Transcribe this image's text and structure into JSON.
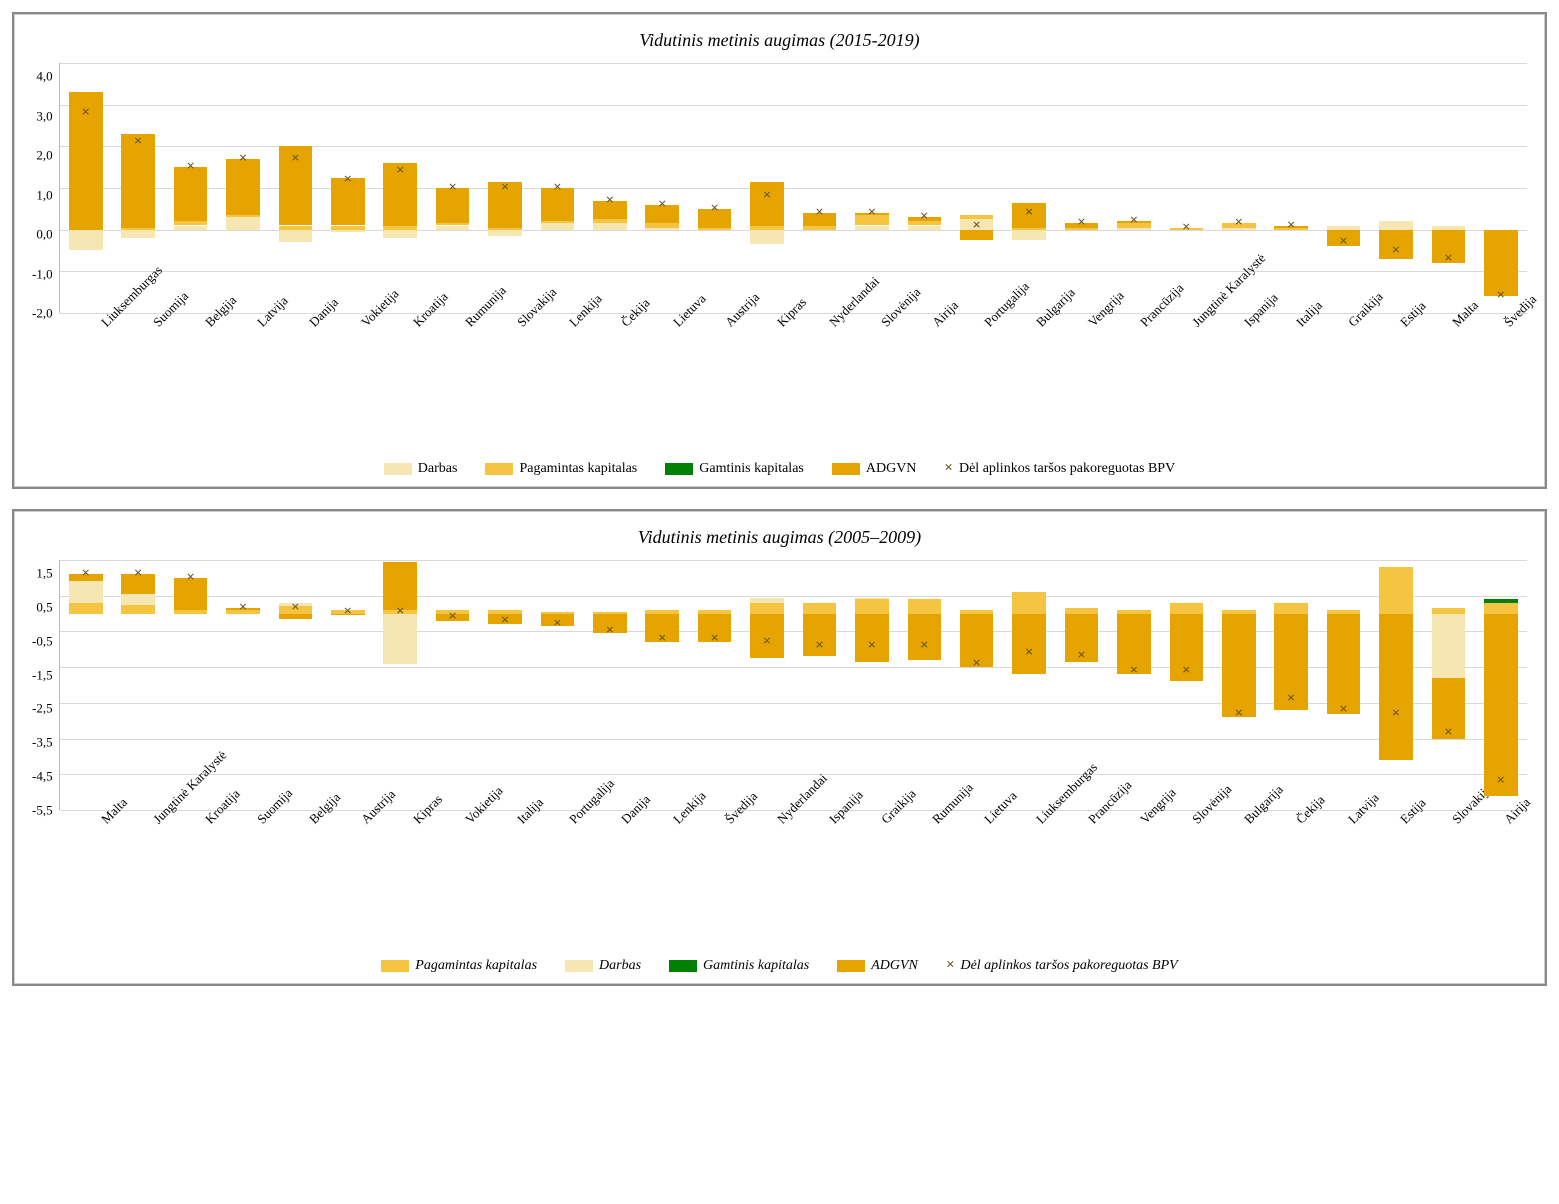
{
  "colors": {
    "darbas": "#f5e6b2",
    "pagamintas": "#f5c542",
    "gamtinis": "#008000",
    "adgvn": "#e6a400",
    "marker": "#6b5623",
    "grid": "#d9d9d9",
    "background": "#ffffff",
    "border": "#888888"
  },
  "typography": {
    "title_fontsize": 18,
    "axis_fontsize": 13,
    "legend_fontsize": 14,
    "font_family": "Times New Roman"
  },
  "chart1": {
    "type": "stacked-bar-with-marker",
    "title": "Vidutinis metinis augimas (2015-2019)",
    "ylim": [
      -2.0,
      4.0
    ],
    "ytick_step": 1.0,
    "yticks": [
      "4,0",
      "3,0",
      "2,0",
      "1,0",
      "0,0",
      "-1,0",
      "-2,0"
    ],
    "bar_width": 0.64,
    "categories": [
      "Liuksemburgas",
      "Suomija",
      "Belgija",
      "Latvija",
      "Danija",
      "Vokietija",
      "Kroatija",
      "Rumunija",
      "Slovakija",
      "Lenkija",
      "Čekija",
      "Lietuva",
      "Austrija",
      "Kipras",
      "Nyderlandai",
      "Slovėnija",
      "Airija",
      "Portugalija",
      "Bulgarija",
      "Vengrija",
      "Prancūzija",
      "Jungtinė Karalystė",
      "Ispanija",
      "Italija",
      "Graikija",
      "Estija",
      "Malta",
      "Švedija"
    ],
    "series": [
      {
        "name": "Darbas",
        "key": "darbas",
        "color": "#f5e6b2"
      },
      {
        "name": "Pagamintas kapitalas",
        "key": "pagamintas",
        "color": "#f5c542"
      },
      {
        "name": "Gamtinis kapitalas",
        "key": "gamtinis",
        "color": "#008000"
      },
      {
        "name": "ADGVN",
        "key": "adgvn",
        "color": "#e6a400"
      }
    ],
    "marker_series": {
      "name": "Dėl aplinkos taršos pakoreguotas BPV",
      "symbol": "×",
      "color": "#6b5623"
    },
    "data": [
      {
        "darbas": -0.5,
        "pagamintas": 0.0,
        "gamtinis": 0.0,
        "adgvn": 3.3,
        "bpv": 2.8
      },
      {
        "darbas": -0.2,
        "pagamintas": 0.05,
        "gamtinis": 0.0,
        "adgvn": 2.25,
        "bpv": 2.1
      },
      {
        "darbas": 0.1,
        "pagamintas": 0.1,
        "gamtinis": 0.0,
        "adgvn": 1.3,
        "bpv": 1.5
      },
      {
        "darbas": 0.3,
        "pagamintas": 0.05,
        "gamtinis": 0.0,
        "adgvn": 1.35,
        "bpv": 1.7
      },
      {
        "darbas": -0.3,
        "pagamintas": 0.1,
        "gamtinis": 0.0,
        "adgvn": 1.9,
        "bpv": 1.7
      },
      {
        "darbas": -0.05,
        "pagamintas": 0.1,
        "gamtinis": 0.0,
        "adgvn": 1.15,
        "bpv": 1.2
      },
      {
        "darbas": -0.2,
        "pagamintas": 0.1,
        "gamtinis": 0.0,
        "adgvn": 1.5,
        "bpv": 1.4
      },
      {
        "darbas": 0.1,
        "pagamintas": 0.05,
        "gamtinis": 0.0,
        "adgvn": 0.85,
        "bpv": 1.0
      },
      {
        "darbas": -0.15,
        "pagamintas": 0.05,
        "gamtinis": 0.0,
        "adgvn": 1.1,
        "bpv": 1.0
      },
      {
        "darbas": 0.15,
        "pagamintas": 0.05,
        "gamtinis": 0.0,
        "adgvn": 0.8,
        "bpv": 1.0
      },
      {
        "darbas": 0.15,
        "pagamintas": 0.1,
        "gamtinis": 0.0,
        "adgvn": 0.45,
        "bpv": 0.7
      },
      {
        "darbas": 0.05,
        "pagamintas": 0.1,
        "gamtinis": 0.0,
        "adgvn": 0.45,
        "bpv": 0.6
      },
      {
        "darbas": 0.0,
        "pagamintas": 0.05,
        "gamtinis": 0.0,
        "adgvn": 0.45,
        "bpv": 0.5
      },
      {
        "darbas": -0.35,
        "pagamintas": 0.1,
        "gamtinis": 0.0,
        "adgvn": 1.05,
        "bpv": 0.8
      },
      {
        "darbas": 0.0,
        "pagamintas": 0.1,
        "gamtinis": 0.0,
        "adgvn": 0.3,
        "bpv": 0.4
      },
      {
        "darbas": 0.1,
        "pagamintas": 0.25,
        "gamtinis": 0.0,
        "adgvn": 0.05,
        "bpv": 0.4
      },
      {
        "darbas": 0.1,
        "pagamintas": 0.1,
        "gamtinis": 0.0,
        "adgvn": 0.1,
        "bpv": 0.3
      },
      {
        "darbas": 0.25,
        "pagamintas": 0.1,
        "gamtinis": 0.0,
        "adgvn": -0.25,
        "bpv": 0.1
      },
      {
        "darbas": -0.25,
        "pagamintas": 0.05,
        "gamtinis": 0.0,
        "adgvn": 0.6,
        "bpv": 0.4
      },
      {
        "darbas": 0.0,
        "pagamintas": 0.05,
        "gamtinis": 0.0,
        "adgvn": 0.1,
        "bpv": 0.15
      },
      {
        "darbas": 0.05,
        "pagamintas": 0.1,
        "gamtinis": 0.0,
        "adgvn": 0.05,
        "bpv": 0.2
      },
      {
        "darbas": 0.0,
        "pagamintas": 0.05,
        "gamtinis": 0.0,
        "adgvn": 0.0,
        "bpv": 0.05
      },
      {
        "darbas": 0.05,
        "pagamintas": 0.1,
        "gamtinis": 0.0,
        "adgvn": -0.0,
        "bpv": 0.15
      },
      {
        "darbas": 0.0,
        "pagamintas": 0.05,
        "gamtinis": 0.0,
        "adgvn": 0.05,
        "bpv": 0.1
      },
      {
        "darbas": 0.1,
        "pagamintas": 0.0,
        "gamtinis": 0.0,
        "adgvn": -0.4,
        "bpv": -0.3
      },
      {
        "darbas": 0.2,
        "pagamintas": 0.0,
        "gamtinis": 0.0,
        "adgvn": -0.7,
        "bpv": -0.5
      },
      {
        "darbas": 0.1,
        "pagamintas": 0.0,
        "gamtinis": 0.0,
        "adgvn": -0.8,
        "bpv": -0.7
      },
      {
        "darbas": 0.0,
        "pagamintas": 0.0,
        "gamtinis": 0.0,
        "adgvn": -1.6,
        "bpv": -1.6
      }
    ],
    "legend": [
      {
        "label": "Darbas",
        "type": "swatch",
        "color": "#f5e6b2"
      },
      {
        "label": "Pagamintas kapitalas",
        "type": "swatch",
        "color": "#f5c542"
      },
      {
        "label": "Gamtinis kapitalas",
        "type": "swatch",
        "color": "#008000"
      },
      {
        "label": "ADGVN",
        "type": "swatch",
        "color": "#e6a400"
      },
      {
        "label": "Dėl aplinkos taršos pakoreguotas BPV",
        "type": "marker",
        "symbol": "×"
      }
    ]
  },
  "chart2": {
    "type": "stacked-bar-with-marker",
    "title": "Vidutinis metinis augimas (2005–2009)",
    "ylim": [
      -5.5,
      1.5
    ],
    "ytick_step": 1.0,
    "yticks": [
      "1,5",
      "0,5",
      "-0,5",
      "-1,5",
      "-2,5",
      "-3,5",
      "-4,5",
      "-5,5"
    ],
    "bar_width": 0.64,
    "legend_italic": true,
    "categories": [
      "Malta",
      "Jungtinė Karalystė",
      "Kroatija",
      "Suomija",
      "Belgija",
      "Austrija",
      "Kipras",
      "Vokietija",
      "Italija",
      "Portugalija",
      "Danija",
      "Lenkija",
      "Švedija",
      "Nyderlandai",
      "Ispanija",
      "Graikija",
      "Rumunija",
      "Lietuva",
      "Liuksemburgas",
      "Prancūzija",
      "Vengrija",
      "Slovėnija",
      "Bulgarija",
      "Čekija",
      "Latvija",
      "Estija",
      "Slovakija",
      "Airija"
    ],
    "series": [
      {
        "name": "Pagamintas kapitalas",
        "key": "pagamintas",
        "color": "#f5c542"
      },
      {
        "name": "Darbas",
        "key": "darbas",
        "color": "#f5e6b2"
      },
      {
        "name": "Gamtinis kapitalas",
        "key": "gamtinis",
        "color": "#008000"
      },
      {
        "name": "ADGVN",
        "key": "adgvn",
        "color": "#e6a400"
      }
    ],
    "marker_series": {
      "name": "Dėl aplinkos taršos pakoreguotas BPV",
      "symbol": "×",
      "color": "#6b5623"
    },
    "data": [
      {
        "pagamintas": 0.3,
        "darbas": 0.6,
        "gamtinis": 0.0,
        "adgvn": 0.2,
        "bpv": 1.1
      },
      {
        "pagamintas": 0.25,
        "darbas": 0.3,
        "gamtinis": 0.0,
        "adgvn": 0.55,
        "bpv": 1.1
      },
      {
        "pagamintas": 0.1,
        "darbas": 0.0,
        "gamtinis": 0.0,
        "adgvn": 0.9,
        "bpv": 1.0
      },
      {
        "pagamintas": 0.1,
        "darbas": 0.0,
        "gamtinis": 0.0,
        "adgvn": 0.05,
        "bpv": 0.15
      },
      {
        "pagamintas": 0.2,
        "darbas": 0.1,
        "gamtinis": 0.0,
        "adgvn": -0.15,
        "bpv": 0.15
      },
      {
        "pagamintas": 0.1,
        "darbas": 0.0,
        "gamtinis": 0.0,
        "adgvn": -0.05,
        "bpv": 0.05
      },
      {
        "pagamintas": 0.1,
        "darbas": -1.4,
        "gamtinis": 0.0,
        "adgvn": 1.35,
        "bpv": 0.05
      },
      {
        "pagamintas": 0.1,
        "darbas": 0.0,
        "gamtinis": 0.0,
        "adgvn": -0.2,
        "bpv": -0.1
      },
      {
        "pagamintas": 0.1,
        "darbas": 0.0,
        "gamtinis": 0.0,
        "adgvn": -0.3,
        "bpv": -0.2
      },
      {
        "pagamintas": 0.05,
        "darbas": 0.0,
        "gamtinis": 0.0,
        "adgvn": -0.35,
        "bpv": -0.3
      },
      {
        "pagamintas": 0.05,
        "darbas": 0.0,
        "gamtinis": 0.0,
        "adgvn": -0.55,
        "bpv": -0.5
      },
      {
        "pagamintas": 0.1,
        "darbas": 0.0,
        "gamtinis": 0.0,
        "adgvn": -0.8,
        "bpv": -0.7
      },
      {
        "pagamintas": 0.1,
        "darbas": 0.0,
        "gamtinis": 0.0,
        "adgvn": -0.8,
        "bpv": -0.7
      },
      {
        "pagamintas": 0.3,
        "darbas": 0.15,
        "gamtinis": 0.0,
        "adgvn": -1.25,
        "bpv": -0.8
      },
      {
        "pagamintas": 0.3,
        "darbas": 0.0,
        "gamtinis": 0.0,
        "adgvn": -1.2,
        "bpv": -0.9
      },
      {
        "pagamintas": 0.4,
        "darbas": 0.05,
        "gamtinis": 0.0,
        "adgvn": -1.35,
        "bpv": -0.9
      },
      {
        "pagamintas": 0.4,
        "darbas": 0.0,
        "gamtinis": 0.0,
        "adgvn": -1.3,
        "bpv": -0.9
      },
      {
        "pagamintas": 0.1,
        "darbas": 0.0,
        "gamtinis": 0.0,
        "adgvn": -1.5,
        "bpv": -1.4
      },
      {
        "pagamintas": 0.6,
        "darbas": 0.0,
        "gamtinis": 0.0,
        "adgvn": -1.7,
        "bpv": -1.1
      },
      {
        "pagamintas": 0.15,
        "darbas": 0.0,
        "gamtinis": 0.0,
        "adgvn": -1.35,
        "bpv": -1.2
      },
      {
        "pagamintas": 0.1,
        "darbas": 0.0,
        "gamtinis": 0.0,
        "adgvn": -1.7,
        "bpv": -1.6
      },
      {
        "pagamintas": 0.3,
        "darbas": 0.0,
        "gamtinis": 0.0,
        "adgvn": -1.9,
        "bpv": -1.6
      },
      {
        "pagamintas": 0.1,
        "darbas": 0.0,
        "gamtinis": 0.0,
        "adgvn": -2.9,
        "bpv": -2.8
      },
      {
        "pagamintas": 0.3,
        "darbas": 0.0,
        "gamtinis": 0.0,
        "adgvn": -2.7,
        "bpv": -2.4
      },
      {
        "pagamintas": 0.1,
        "darbas": 0.0,
        "gamtinis": 0.0,
        "adgvn": -2.8,
        "bpv": -2.7
      },
      {
        "pagamintas": 1.3,
        "darbas": 0.0,
        "gamtinis": 0.0,
        "adgvn": -4.1,
        "bpv": -2.8
      },
      {
        "pagamintas": 0.15,
        "darbas": -1.8,
        "gamtinis": 0.0,
        "adgvn": -1.7,
        "bpv": -3.35
      },
      {
        "pagamintas": 0.3,
        "darbas": 0.0,
        "gamtinis": 0.1,
        "adgvn": -5.1,
        "bpv": -4.7
      }
    ],
    "legend": [
      {
        "label": "Pagamintas kapitalas",
        "type": "swatch",
        "color": "#f5c542"
      },
      {
        "label": "Darbas",
        "type": "swatch",
        "color": "#f5e6b2"
      },
      {
        "label": "Gamtinis kapitalas",
        "type": "swatch",
        "color": "#008000"
      },
      {
        "label": "ADGVN",
        "type": "swatch",
        "color": "#e6a400"
      },
      {
        "label": "Dėl aplinkos taršos pakoreguotas BPV",
        "type": "marker",
        "symbol": "×"
      }
    ]
  }
}
